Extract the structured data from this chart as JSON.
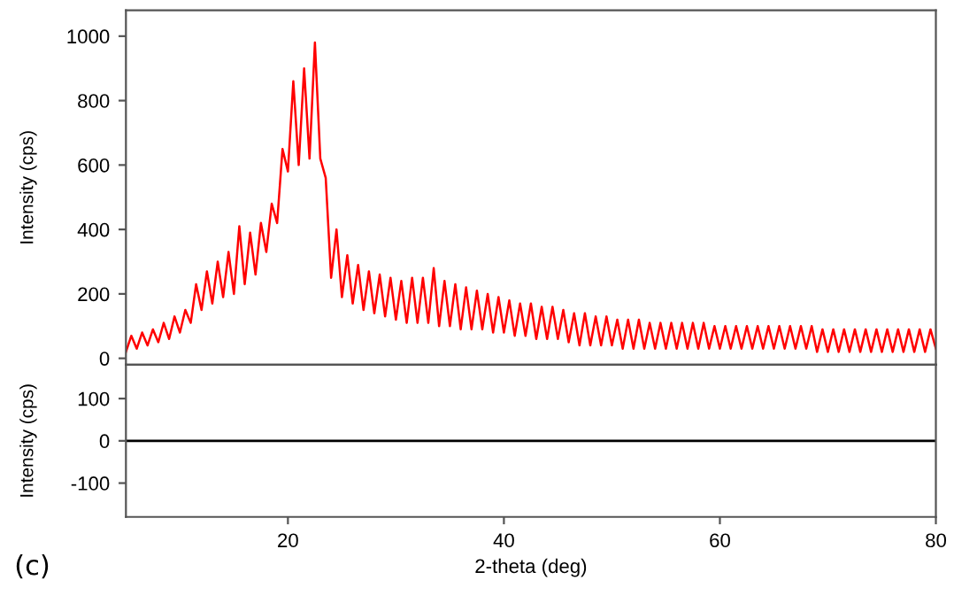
{
  "chart_data": [
    {
      "type": "line",
      "ylabel": "Intensity (cps)",
      "xlim": [
        5,
        80
      ],
      "ylim": [
        -20,
        1080
      ],
      "yticks": [
        0,
        200,
        400,
        600,
        800,
        1000
      ],
      "tick_labels": "y",
      "grid": false,
      "legend": false,
      "x": [
        5,
        5.5,
        6,
        6.5,
        7,
        7.5,
        8,
        8.5,
        9,
        9.5,
        10,
        10.5,
        11,
        11.5,
        12,
        12.5,
        13,
        13.5,
        14,
        14.5,
        15,
        15.5,
        16,
        16.5,
        17,
        17.5,
        18,
        18.5,
        19,
        19.5,
        20,
        20.5,
        21,
        21.5,
        22,
        22.5,
        23,
        23.5,
        24,
        24.5,
        25,
        25.5,
        26,
        26.5,
        27,
        27.5,
        28,
        28.5,
        29,
        29.5,
        30,
        30.5,
        31,
        31.5,
        32,
        32.5,
        33,
        33.5,
        34,
        34.5,
        35,
        35.5,
        36,
        36.5,
        37,
        37.5,
        38,
        38.5,
        39,
        39.5,
        40,
        40.5,
        41,
        41.5,
        42,
        42.5,
        43,
        43.5,
        44,
        44.5,
        45,
        45.5,
        46,
        46.5,
        47,
        47.5,
        48,
        48.5,
        49,
        49.5,
        50,
        50.5,
        51,
        51.5,
        52,
        52.5,
        53,
        53.5,
        54,
        54.5,
        55,
        55.5,
        56,
        56.5,
        57,
        57.5,
        58,
        58.5,
        59,
        59.5,
        60,
        60.5,
        61,
        61.5,
        62,
        62.5,
        63,
        63.5,
        64,
        64.5,
        65,
        65.5,
        66,
        66.5,
        67,
        67.5,
        68,
        68.5,
        69,
        69.5,
        70,
        70.5,
        71,
        71.5,
        72,
        72.5,
        73,
        73.5,
        74,
        74.5,
        75,
        75.5,
        76,
        76.5,
        77,
        77.5,
        78,
        78.5,
        79,
        79.5,
        80
      ],
      "series": [
        {
          "color": "#ff0000",
          "values": [
            20,
            70,
            30,
            80,
            40,
            90,
            50,
            110,
            60,
            130,
            80,
            150,
            110,
            230,
            150,
            270,
            170,
            300,
            190,
            330,
            200,
            410,
            230,
            390,
            260,
            420,
            330,
            480,
            420,
            650,
            580,
            860,
            600,
            900,
            620,
            980,
            620,
            560,
            250,
            400,
            190,
            320,
            170,
            290,
            150,
            270,
            140,
            260,
            130,
            250,
            120,
            240,
            110,
            250,
            110,
            250,
            110,
            280,
            100,
            240,
            100,
            230,
            90,
            220,
            90,
            210,
            90,
            200,
            80,
            190,
            80,
            180,
            70,
            170,
            70,
            170,
            60,
            160,
            60,
            160,
            60,
            150,
            50,
            140,
            40,
            140,
            40,
            130,
            40,
            130,
            40,
            120,
            30,
            120,
            30,
            120,
            30,
            110,
            30,
            110,
            30,
            110,
            30,
            110,
            30,
            110,
            30,
            110,
            30,
            100,
            30,
            100,
            30,
            100,
            30,
            100,
            30,
            100,
            30,
            100,
            30,
            100,
            30,
            100,
            30,
            100,
            30,
            100,
            20,
            90,
            20,
            90,
            20,
            90,
            20,
            90,
            20,
            90,
            20,
            90,
            20,
            90,
            20,
            90,
            20,
            90,
            20,
            90,
            20,
            90,
            30
          ]
        }
      ]
    },
    {
      "type": "line",
      "xlabel": "2-theta (deg)",
      "ylabel": "Intensity (cps)",
      "xlim": [
        5,
        80
      ],
      "xticks": [
        20,
        40,
        60,
        80
      ],
      "ylim": [
        -180,
        180
      ],
      "yticks": [
        {
          "value": -100,
          "label": "-100"
        },
        0,
        100
      ],
      "grid": false,
      "legend": false,
      "x": [
        5,
        80
      ],
      "series": [
        {
          "color": "#000000",
          "values": [
            0,
            0
          ]
        }
      ],
      "annotations": [
        "(c)"
      ]
    }
  ]
}
